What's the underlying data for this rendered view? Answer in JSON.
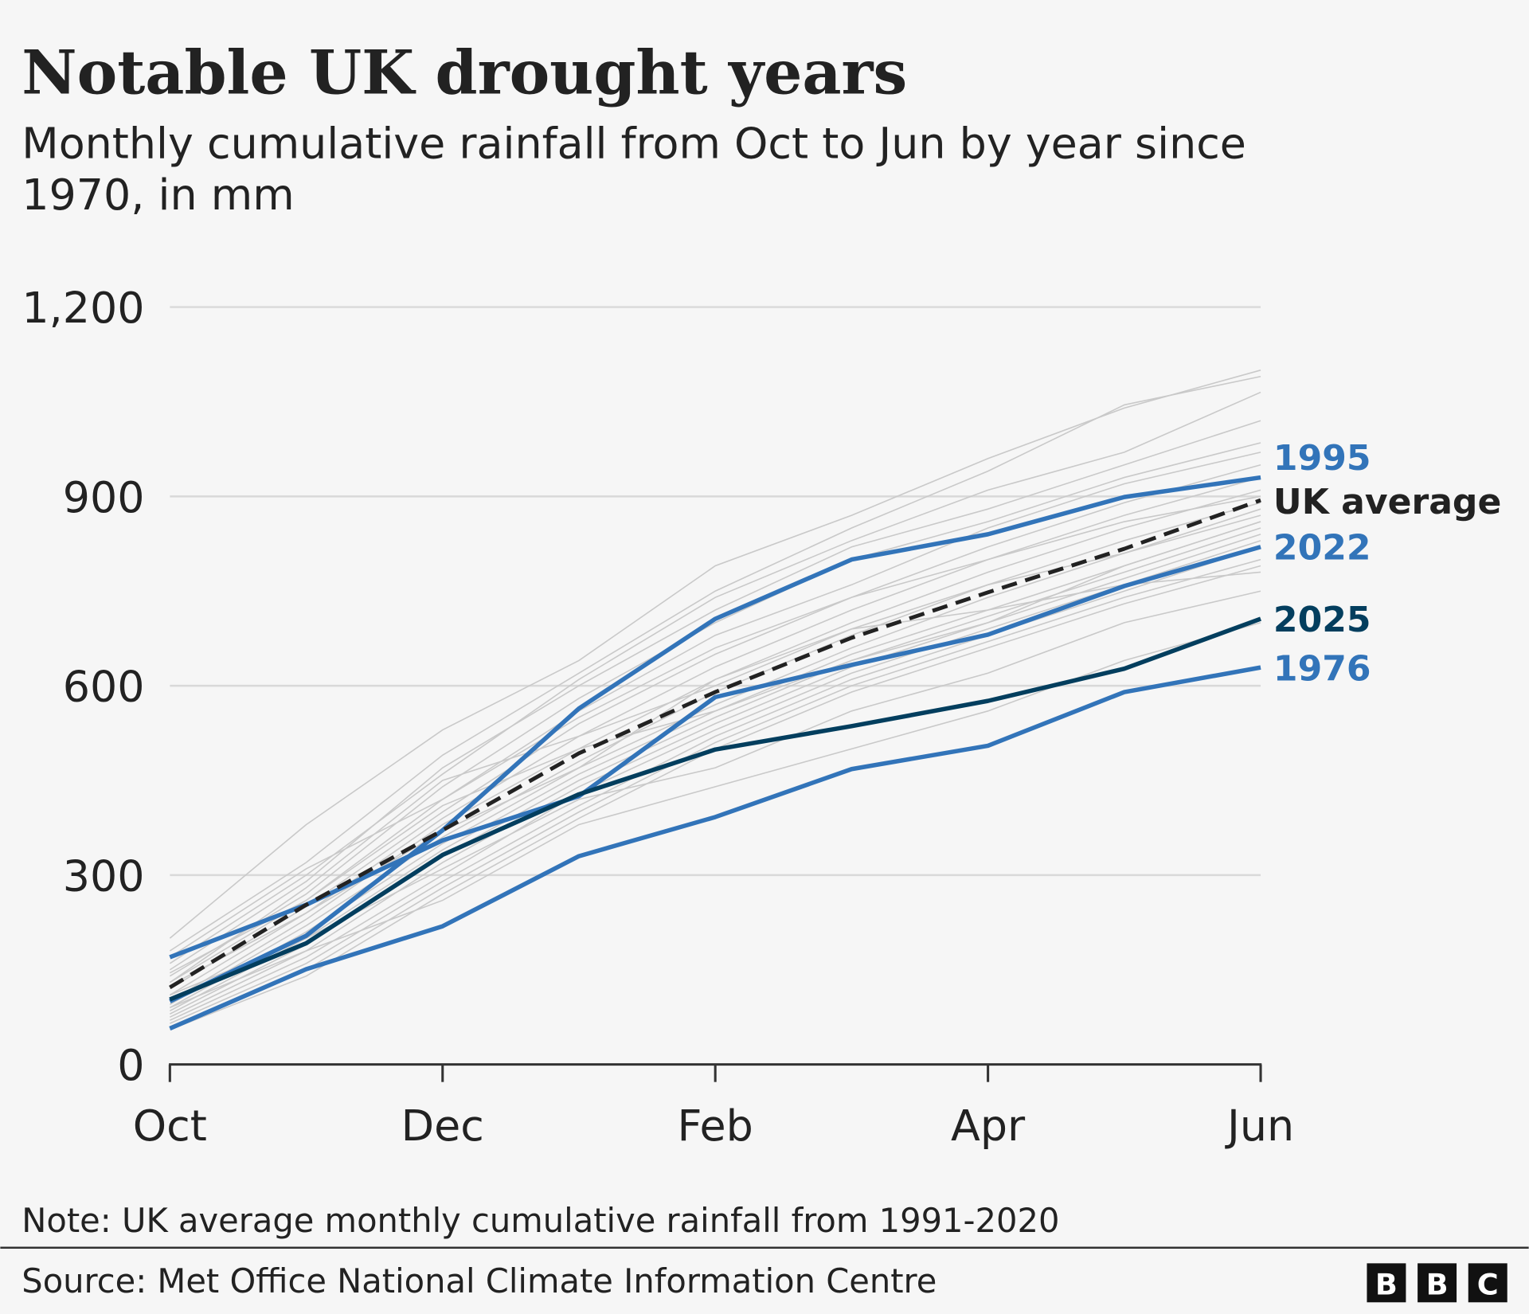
{
  "title": "Notable UK drought years",
  "subtitle_line1": "Monthly cumulative rainfall from Oct to Jun by year since",
  "subtitle_line2": "1970, in mm",
  "note": "Note: UK average monthly cumulative rainfall from 1991-2020",
  "source": "Source: Met Office National Climate Information Centre",
  "logo": [
    "B",
    "B",
    "C"
  ],
  "chart_data": {
    "type": "line",
    "x": [
      "Oct",
      "Nov",
      "Dec",
      "Jan",
      "Feb",
      "Mar",
      "Apr",
      "May",
      "Jun"
    ],
    "x_tick_labels": [
      "Oct",
      "Dec",
      "Feb",
      "Apr",
      "Jun"
    ],
    "y_ticks": [
      0,
      300,
      600,
      900,
      1200
    ],
    "y_tick_labels": [
      "0",
      "300",
      "600",
      "900",
      "1,200"
    ],
    "ylim": [
      0,
      1200
    ],
    "grid": "horizontal",
    "colors": {
      "highlight": "#3274b9",
      "current": "#033e5e",
      "average": "#222222",
      "background_years": "#c9c9c9",
      "grid": "#d9d9d9"
    },
    "highlighted": [
      {
        "name": "1995",
        "color": "#3274b9",
        "values": [
          100,
          204,
          371,
          564,
          706,
          800,
          840,
          899,
          930
        ]
      },
      {
        "name": "UK average",
        "color": "#222222",
        "dashed": true,
        "values": [
          122,
          253,
          371,
          493,
          590,
          676,
          748,
          817,
          894
        ]
      },
      {
        "name": "2022",
        "color": "#3274b9",
        "values": [
          170,
          253,
          355,
          425,
          582,
          633,
          681,
          758,
          820
        ]
      },
      {
        "name": "2025",
        "color": "#033e5e",
        "values": [
          103,
          192,
          332,
          428,
          499,
          536,
          576,
          627,
          706
        ]
      },
      {
        "name": "1976",
        "color": "#3274b9",
        "values": [
          57,
          151,
          219,
          330,
          392,
          468,
          505,
          590,
          629
        ]
      }
    ],
    "other_years": [
      [
        200,
        380,
        530,
        640,
        790,
        870,
        960,
        1040,
        1100
      ],
      [
        180,
        320,
        490,
        620,
        750,
        850,
        940,
        1045,
        1090
      ],
      [
        160,
        300,
        460,
        610,
        740,
        830,
        910,
        970,
        1065
      ],
      [
        150,
        290,
        470,
        600,
        720,
        820,
        880,
        950,
        1020
      ],
      [
        140,
        270,
        440,
        580,
        700,
        800,
        860,
        930,
        985
      ],
      [
        130,
        260,
        420,
        560,
        680,
        760,
        850,
        920,
        970
      ],
      [
        120,
        250,
        400,
        540,
        650,
        740,
        820,
        890,
        950
      ],
      [
        110,
        240,
        390,
        520,
        630,
        720,
        800,
        870,
        930
      ],
      [
        100,
        230,
        380,
        500,
        610,
        700,
        780,
        850,
        910
      ],
      [
        95,
        220,
        360,
        480,
        590,
        680,
        760,
        830,
        890
      ],
      [
        90,
        210,
        350,
        470,
        570,
        660,
        740,
        810,
        870
      ],
      [
        85,
        200,
        340,
        460,
        560,
        650,
        720,
        790,
        860
      ],
      [
        80,
        190,
        330,
        450,
        550,
        640,
        710,
        780,
        850
      ],
      [
        75,
        180,
        320,
        440,
        540,
        630,
        700,
        770,
        840
      ],
      [
        70,
        170,
        300,
        430,
        530,
        620,
        690,
        760,
        830
      ],
      [
        65,
        160,
        290,
        410,
        520,
        610,
        680,
        750,
        820
      ],
      [
        60,
        150,
        280,
        400,
        510,
        600,
        670,
        740,
        800
      ],
      [
        55,
        140,
        270,
        390,
        500,
        590,
        660,
        730,
        790
      ],
      [
        130,
        280,
        450,
        520,
        600,
        690,
        720,
        760,
        780
      ],
      [
        110,
        200,
        310,
        420,
        470,
        560,
        620,
        700,
        750
      ],
      [
        90,
        180,
        260,
        380,
        440,
        500,
        560,
        640,
        700
      ],
      [
        170,
        310,
        420,
        550,
        660,
        740,
        800,
        860,
        900
      ],
      [
        145,
        260,
        410,
        500,
        560,
        640,
        700,
        790,
        860
      ],
      [
        125,
        240,
        370,
        470,
        610,
        690,
        760,
        810,
        880
      ]
    ]
  }
}
